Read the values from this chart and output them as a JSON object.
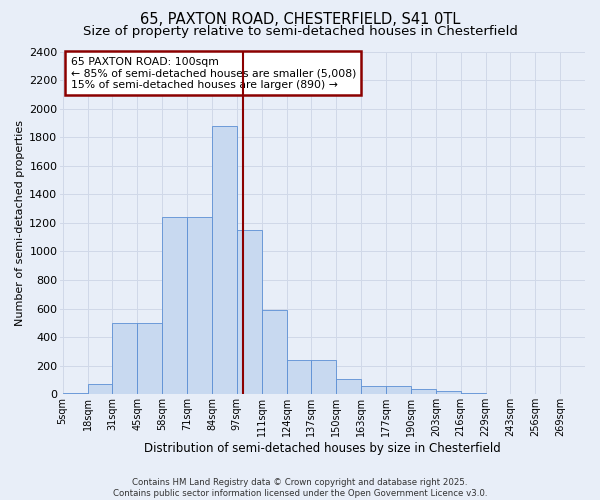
{
  "title1": "65, PAXTON ROAD, CHESTERFIELD, S41 0TL",
  "title2": "Size of property relative to semi-detached houses in Chesterfield",
  "xlabel": "Distribution of semi-detached houses by size in Chesterfield",
  "ylabel": "Number of semi-detached properties",
  "footnote": "Contains HM Land Registry data © Crown copyright and database right 2025.\nContains public sector information licensed under the Open Government Licence v3.0.",
  "bin_labels": [
    "5sqm",
    "18sqm",
    "31sqm",
    "45sqm",
    "58sqm",
    "71sqm",
    "84sqm",
    "97sqm",
    "111sqm",
    "124sqm",
    "137sqm",
    "150sqm",
    "163sqm",
    "177sqm",
    "190sqm",
    "203sqm",
    "216sqm",
    "229sqm",
    "243sqm",
    "256sqm",
    "269sqm"
  ],
  "n_bins": 21,
  "bar_heights": [
    10,
    75,
    500,
    500,
    1240,
    1240,
    1875,
    1150,
    590,
    240,
    240,
    110,
    60,
    60,
    35,
    20,
    10,
    2,
    1,
    0,
    0
  ],
  "bar_color": "#c8d9f0",
  "bar_edge_color": "#5b8fd4",
  "property_bin": 7,
  "vline_color": "#8b0000",
  "annotation_line1": "65 PAXTON ROAD: 100sqm",
  "annotation_line2": "← 85% of semi-detached houses are smaller (5,008)",
  "annotation_line3": "15% of semi-detached houses are larger (890) →",
  "annotation_box_color": "#ffffff",
  "annotation_box_edge": "#8b0000",
  "ylim": [
    0,
    2400
  ],
  "yticks": [
    0,
    200,
    400,
    600,
    800,
    1000,
    1200,
    1400,
    1600,
    1800,
    2000,
    2200,
    2400
  ],
  "background_color": "#e8eef8",
  "grid_color": "#d0d8e8",
  "title_fontsize": 10.5,
  "subtitle_fontsize": 9.5
}
